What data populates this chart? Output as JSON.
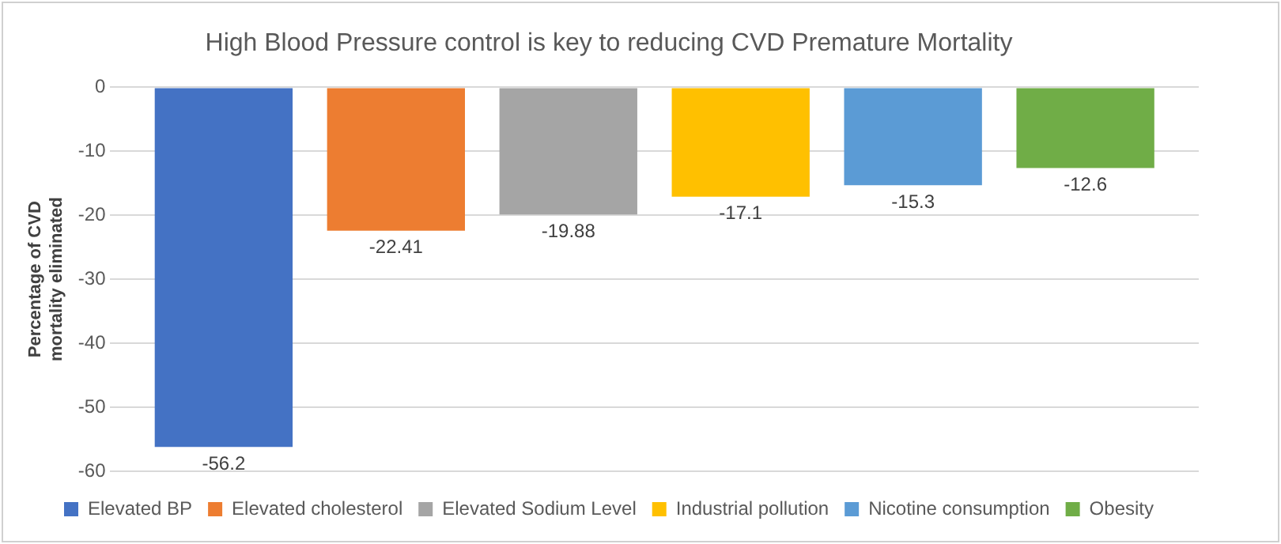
{
  "chart_data": {
    "type": "bar",
    "title": "High Blood Pressure control is key to reducing CVD Premature Mortality",
    "ylabel": "Percentage of CVD mortality eliminated",
    "categories": [
      null
    ],
    "series": [
      {
        "name": "Elevated BP",
        "color": "#4472c4",
        "values": [
          -56.2
        ]
      },
      {
        "name": "Elevated cholesterol",
        "color": "#ed7d31",
        "values": [
          -22.41
        ]
      },
      {
        "name": "Elevated Sodium Level",
        "color": "#a5a5a5",
        "values": [
          -19.88
        ]
      },
      {
        "name": "Industrial pollution",
        "color": "#ffc000",
        "values": [
          -17.1
        ]
      },
      {
        "name": "Nicotine consumption",
        "color": "#5b9bd5",
        "values": [
          -15.3
        ]
      },
      {
        "name": "Obesity",
        "color": "#70ad47",
        "values": [
          -12.6
        ]
      }
    ],
    "ylim": [
      -60,
      0
    ],
    "yticks": [
      -60,
      -50,
      -40,
      -30,
      -20,
      -10,
      0
    ],
    "grid": "y",
    "legend": "bottom",
    "data_labels": true
  }
}
